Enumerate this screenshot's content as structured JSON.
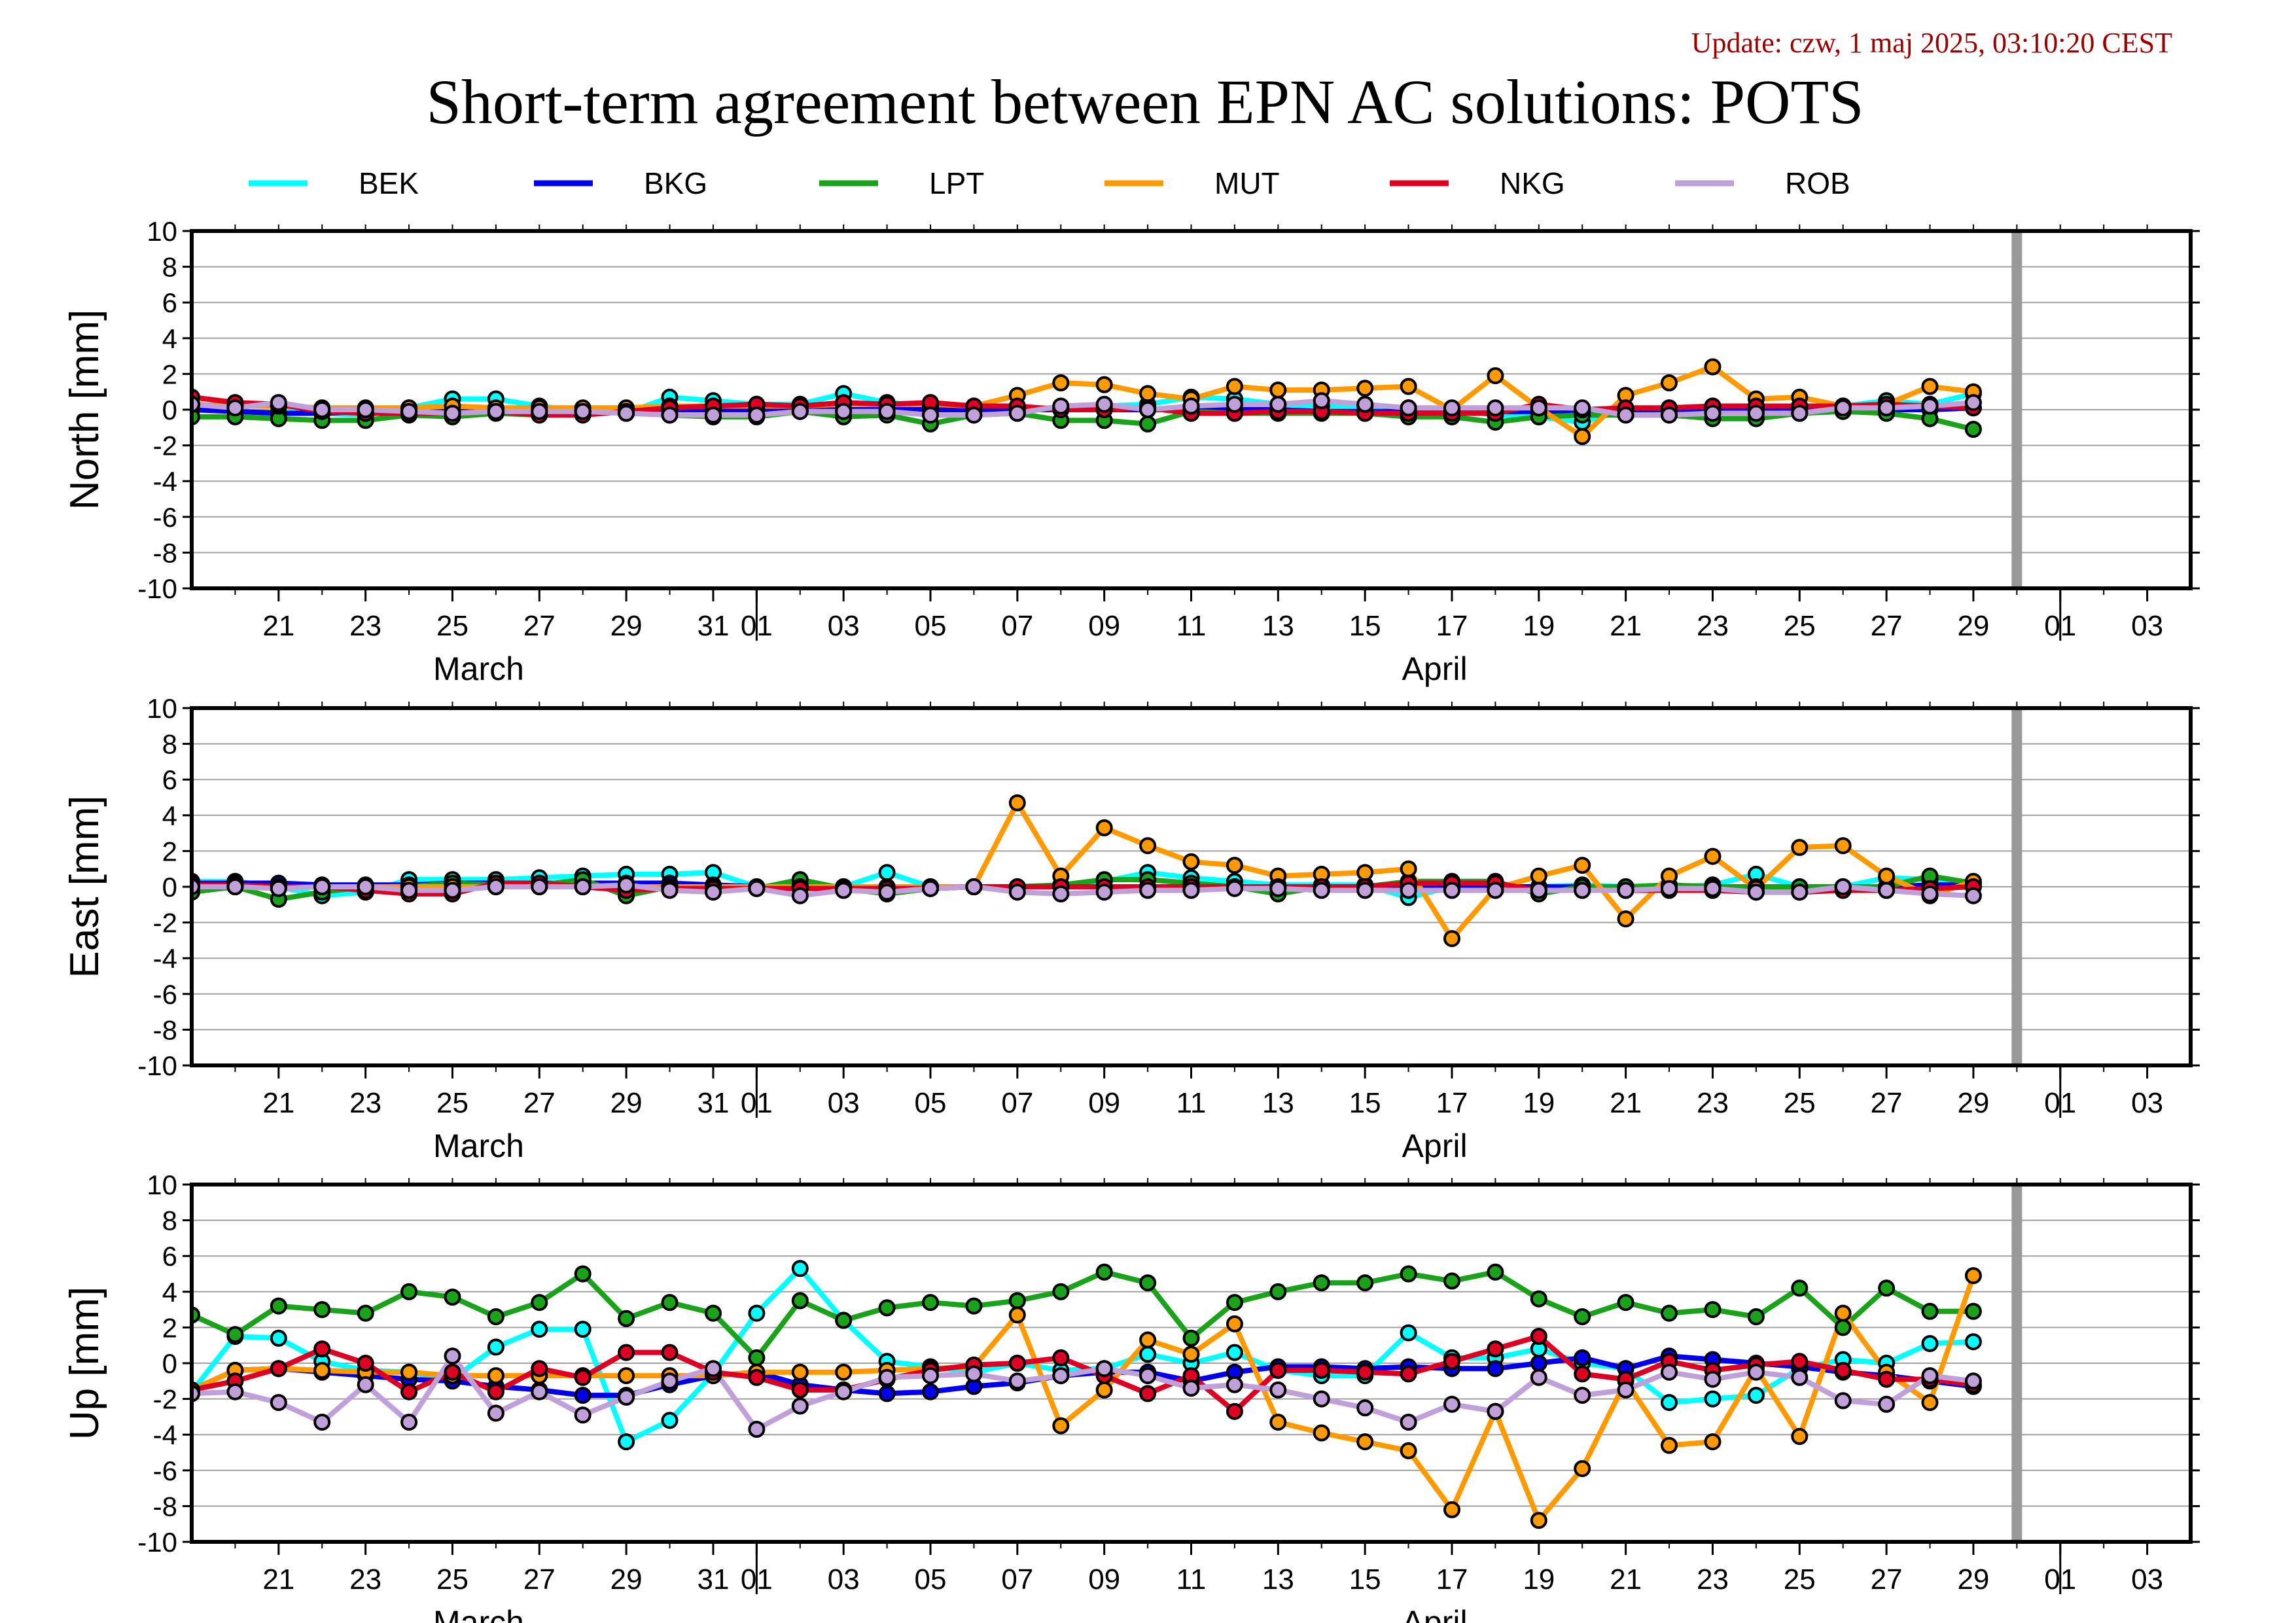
{
  "update_text": "Update: czw, 1 maj 2025, 03:10:20 CEST",
  "title": "Short-term agreement between EPN AC solutions: POTS",
  "colors": {
    "BEK": "#00ffff",
    "BKG": "#0000ee",
    "LPT": "#1aa31a",
    "MUT": "#ff9900",
    "NKG": "#dd0022",
    "ROB": "#c0a0d8",
    "marker_edge": "#000000",
    "today_line": "#999999",
    "grid": "#a0a0a0",
    "update_text": "#990000"
  },
  "chart_data": {
    "type": "line",
    "x_unit": "day",
    "xlim": [
      "2025-03-19",
      "2025-05-04"
    ],
    "ylim": [
      -10,
      10
    ],
    "yticks": [
      -10,
      -8,
      -6,
      -4,
      -2,
      0,
      2,
      4,
      6,
      8,
      10
    ],
    "x_tick_labels": [
      "21",
      "23",
      "25",
      "27",
      "29",
      "31",
      "01",
      "03",
      "05",
      "07",
      "09",
      "11",
      "13",
      "15",
      "17",
      "19",
      "21",
      "23",
      "25",
      "27",
      "29",
      "01",
      "03"
    ],
    "x_tick_dates": [
      "2025-03-21",
      "2025-03-23",
      "2025-03-25",
      "2025-03-27",
      "2025-03-29",
      "2025-03-31",
      "2025-04-01",
      "2025-04-03",
      "2025-04-05",
      "2025-04-07",
      "2025-04-09",
      "2025-04-11",
      "2025-04-13",
      "2025-04-15",
      "2025-04-17",
      "2025-04-19",
      "2025-04-21",
      "2025-04-23",
      "2025-04-25",
      "2025-04-27",
      "2025-04-29",
      "2025-05-01",
      "2025-05-03"
    ],
    "month_labels": [
      {
        "text": "March",
        "date": "2025-03-25"
      },
      {
        "text": "April",
        "date": "2025-04-16"
      }
    ],
    "month_boundaries": [
      "2025-03-31",
      "2025-04-30"
    ],
    "today_marker": "2025-04-30",
    "legend": [
      "BEK",
      "BKG",
      "LPT",
      "MUT",
      "NKG",
      "ROB"
    ],
    "legend_position": "top",
    "grid": "horizontal",
    "dates": [
      "2025-03-19",
      "2025-03-20",
      "2025-03-21",
      "2025-03-22",
      "2025-03-23",
      "2025-03-24",
      "2025-03-25",
      "2025-03-26",
      "2025-03-27",
      "2025-03-28",
      "2025-03-29",
      "2025-03-30",
      "2025-03-31",
      "2025-04-01",
      "2025-04-02",
      "2025-04-03",
      "2025-04-04",
      "2025-04-05",
      "2025-04-06",
      "2025-04-07",
      "2025-04-08",
      "2025-04-09",
      "2025-04-10",
      "2025-04-11",
      "2025-04-12",
      "2025-04-13",
      "2025-04-14",
      "2025-04-15",
      "2025-04-16",
      "2025-04-17",
      "2025-04-18",
      "2025-04-19",
      "2025-04-20",
      "2025-04-21",
      "2025-04-22",
      "2025-04-23",
      "2025-04-24",
      "2025-04-25",
      "2025-04-26",
      "2025-04-27",
      "2025-04-28",
      "2025-04-29"
    ],
    "panels": [
      {
        "ylabel": "North [mm]",
        "series": [
          {
            "name": "BEK",
            "values": [
              0.3,
              0.2,
              0.2,
              -0.2,
              -0.3,
              0.1,
              0.6,
              0.6,
              0.2,
              -0.1,
              -0.2,
              0.7,
              0.5,
              0.3,
              0.3,
              0.9,
              0.4,
              0.2,
              0.1,
              0.1,
              0.1,
              0.2,
              0.3,
              0.7,
              0.6,
              0.3,
              0.2,
              0.2,
              0.1,
              0.0,
              -0.3,
              -0.4,
              -0.7,
              0.0,
              0.1,
              0.2,
              0.1,
              0.2,
              0.2,
              0.5,
              0.3,
              0.9
            ]
          },
          {
            "name": "BKG",
            "values": [
              0.0,
              -0.1,
              -0.2,
              -0.2,
              -0.1,
              -0.1,
              -0.1,
              0.0,
              -0.1,
              -0.1,
              -0.1,
              0.0,
              0.0,
              0.0,
              0.0,
              0.0,
              0.0,
              0.0,
              0.0,
              0.0,
              0.0,
              0.0,
              0.0,
              0.0,
              0.0,
              0.0,
              -0.1,
              -0.1,
              -0.1,
              -0.1,
              -0.1,
              -0.1,
              -0.1,
              0.0,
              0.0,
              0.0,
              0.0,
              0.0,
              0.0,
              0.0,
              0.0,
              0.1
            ]
          },
          {
            "name": "LPT",
            "values": [
              -0.4,
              -0.4,
              -0.5,
              -0.6,
              -0.6,
              -0.3,
              -0.4,
              -0.2,
              -0.3,
              -0.1,
              -0.1,
              -0.3,
              -0.4,
              -0.4,
              -0.1,
              -0.4,
              -0.3,
              -0.8,
              -0.3,
              -0.2,
              -0.6,
              -0.6,
              -0.8,
              -0.1,
              -0.2,
              -0.2,
              -0.2,
              -0.2,
              -0.4,
              -0.4,
              -0.7,
              -0.4,
              -0.3,
              -0.3,
              -0.3,
              -0.5,
              -0.5,
              -0.2,
              -0.1,
              -0.2,
              -0.5,
              -1.1
            ]
          },
          {
            "name": "MUT",
            "values": [
              0.3,
              0.2,
              0.2,
              0.1,
              0.1,
              0.1,
              0.2,
              0.1,
              0.1,
              0.1,
              0.1,
              0.2,
              0.2,
              0.2,
              0.2,
              0.3,
              0.3,
              0.3,
              0.2,
              0.8,
              1.5,
              1.4,
              0.9,
              0.6,
              1.3,
              1.1,
              1.1,
              1.2,
              1.3,
              0.0,
              1.9,
              0.1,
              -1.5,
              0.8,
              1.5,
              2.4,
              0.6,
              0.7,
              0.2,
              0.3,
              1.3,
              1.0
            ]
          },
          {
            "name": "NKG",
            "values": [
              0.7,
              0.4,
              0.3,
              -0.1,
              -0.2,
              -0.2,
              -0.2,
              -0.1,
              -0.3,
              -0.3,
              -0.1,
              0.1,
              0.2,
              0.3,
              0.2,
              0.4,
              0.3,
              0.4,
              0.2,
              0.2,
              0.0,
              0.0,
              0.1,
              -0.2,
              -0.2,
              -0.1,
              -0.1,
              -0.2,
              -0.2,
              -0.2,
              -0.2,
              0.3,
              0.0,
              0.1,
              0.1,
              0.2,
              0.2,
              0.2,
              0.2,
              0.3,
              0.2,
              0.1
            ]
          },
          {
            "name": "ROB",
            "values": [
              0.3,
              0.1,
              0.4,
              0.0,
              0.0,
              -0.1,
              -0.2,
              -0.1,
              -0.1,
              -0.1,
              -0.2,
              -0.3,
              -0.3,
              -0.3,
              -0.1,
              -0.1,
              -0.1,
              -0.3,
              -0.3,
              -0.2,
              0.2,
              0.3,
              0.0,
              0.2,
              0.3,
              0.3,
              0.5,
              0.3,
              0.1,
              0.1,
              0.1,
              0.1,
              0.1,
              -0.3,
              -0.3,
              -0.2,
              -0.2,
              -0.2,
              0.1,
              0.1,
              0.2,
              0.4
            ]
          }
        ]
      },
      {
        "ylabel": "East [mm]",
        "series": [
          {
            "name": "BEK",
            "values": [
              0.3,
              0.3,
              0.0,
              -0.5,
              -0.3,
              0.4,
              0.4,
              0.4,
              0.5,
              0.6,
              0.7,
              0.7,
              0.8,
              0.0,
              0.1,
              0.0,
              0.8,
              0.0,
              0.0,
              0.0,
              0.1,
              0.3,
              0.8,
              0.5,
              0.3,
              0.1,
              0.1,
              0.1,
              -0.6,
              0.0,
              0.0,
              0.0,
              0.1,
              0.0,
              0.0,
              0.1,
              0.7,
              0.0,
              0.0,
              0.5,
              0.4,
              0.0
            ]
          },
          {
            "name": "BKG",
            "values": [
              0.2,
              0.2,
              0.2,
              0.1,
              0.1,
              0.1,
              0.2,
              0.2,
              0.2,
              0.2,
              0.2,
              0.2,
              0.1,
              0.0,
              0.0,
              0.0,
              0.0,
              0.0,
              0.0,
              0.0,
              0.0,
              0.0,
              0.0,
              0.0,
              0.0,
              0.0,
              0.0,
              0.0,
              0.0,
              0.0,
              0.0,
              0.0,
              0.0,
              0.0,
              0.0,
              0.0,
              0.0,
              0.0,
              0.0,
              0.0,
              0.1,
              0.1
            ]
          },
          {
            "name": "LPT",
            "values": [
              -0.3,
              0.0,
              -0.7,
              -0.3,
              0.0,
              0.0,
              0.2,
              0.1,
              0.1,
              0.4,
              -0.5,
              0.0,
              0.0,
              -0.1,
              0.4,
              -0.1,
              -0.4,
              -0.1,
              0.0,
              0.0,
              0.1,
              0.4,
              0.4,
              0.2,
              0.0,
              -0.4,
              0.0,
              0.0,
              0.3,
              0.3,
              0.3,
              -0.4,
              0.0,
              0.0,
              0.1,
              0.0,
              0.0,
              0.0,
              0.0,
              0.0,
              0.6,
              0.2
            ]
          },
          {
            "name": "MUT",
            "values": [
              0.0,
              0.0,
              0.0,
              0.0,
              0.0,
              0.0,
              0.0,
              0.0,
              0.0,
              0.0,
              0.0,
              0.0,
              0.0,
              0.0,
              0.0,
              0.0,
              0.0,
              0.0,
              0.0,
              4.7,
              0.6,
              3.3,
              2.3,
              1.4,
              1.2,
              0.6,
              0.7,
              0.8,
              1.0,
              -2.9,
              -0.1,
              0.6,
              1.2,
              -1.8,
              0.6,
              1.7,
              -0.1,
              2.2,
              2.3,
              0.6,
              -0.5,
              0.3
            ]
          },
          {
            "name": "NKG",
            "values": [
              0.1,
              0.1,
              0.0,
              0.0,
              -0.2,
              -0.4,
              -0.4,
              0.2,
              0.2,
              0.0,
              -0.2,
              -0.1,
              -0.1,
              -0.1,
              -0.1,
              -0.1,
              -0.1,
              -0.1,
              0.0,
              0.0,
              0.0,
              0.0,
              0.0,
              0.0,
              0.0,
              0.0,
              0.0,
              0.0,
              0.2,
              0.2,
              0.2,
              -0.2,
              -0.2,
              -0.2,
              -0.2,
              -0.2,
              -0.3,
              -0.3,
              -0.2,
              -0.2,
              -0.1,
              0.0
            ]
          },
          {
            "name": "ROB",
            "values": [
              0.0,
              0.0,
              -0.1,
              0.0,
              0.0,
              -0.2,
              -0.2,
              0.0,
              0.0,
              0.0,
              0.1,
              -0.2,
              -0.3,
              -0.1,
              -0.5,
              -0.2,
              -0.3,
              -0.1,
              0.0,
              -0.3,
              -0.4,
              -0.3,
              -0.2,
              -0.2,
              -0.1,
              -0.1,
              -0.2,
              -0.2,
              -0.2,
              -0.2,
              -0.2,
              -0.2,
              -0.2,
              -0.2,
              -0.1,
              -0.1,
              -0.3,
              -0.3,
              0.0,
              -0.2,
              -0.4,
              -0.5
            ]
          }
        ]
      },
      {
        "ylabel": "Up [mm]",
        "series": [
          {
            "name": "BEK",
            "values": [
              -1.6,
              1.5,
              1.4,
              0.1,
              -0.4,
              -0.5,
              -0.9,
              0.9,
              1.9,
              1.9,
              -4.4,
              -3.2,
              -0.6,
              2.8,
              5.3,
              2.4,
              0.1,
              -0.2,
              -0.5,
              0.0,
              -0.4,
              -0.3,
              0.5,
              0.0,
              0.6,
              -0.4,
              -0.7,
              -0.7,
              1.7,
              0.3,
              0.3,
              0.8,
              0.0,
              -0.3,
              -2.2,
              -2.0,
              -1.8,
              -0.3,
              0.2,
              0.0,
              1.1,
              1.2
            ]
          },
          {
            "name": "BKG",
            "values": [
              -1.5,
              -0.4,
              -0.3,
              -0.5,
              -0.7,
              -0.9,
              -1.0,
              -1.3,
              -1.5,
              -1.8,
              -1.8,
              -1.2,
              -0.7,
              -0.5,
              -1.2,
              -1.5,
              -1.7,
              -1.6,
              -1.3,
              -1.1,
              -0.7,
              -0.5,
              -0.5,
              -1.0,
              -0.5,
              -0.2,
              -0.2,
              -0.3,
              -0.2,
              -0.3,
              -0.3,
              0.0,
              0.3,
              -0.3,
              0.4,
              0.2,
              0.0,
              -0.2,
              -0.5,
              -0.7,
              -1.0,
              -1.3
            ]
          },
          {
            "name": "LPT",
            "values": [
              2.7,
              1.6,
              3.2,
              3.0,
              2.8,
              4.0,
              3.7,
              2.6,
              3.4,
              5.0,
              2.5,
              3.4,
              2.8,
              0.3,
              3.5,
              2.4,
              3.1,
              3.4,
              3.2,
              3.5,
              4.0,
              5.1,
              4.5,
              1.4,
              3.4,
              4.0,
              4.5,
              4.5,
              5.0,
              4.6,
              5.1,
              3.6,
              2.6,
              3.4,
              2.8,
              3.0,
              2.6,
              4.2,
              2.0,
              4.2,
              2.9,
              2.9
            ]
          },
          {
            "name": "MUT",
            "values": [
              -1.5,
              -0.4,
              -0.3,
              -0.4,
              -0.5,
              -0.5,
              -0.7,
              -0.7,
              -0.7,
              -0.7,
              -0.7,
              -0.7,
              -0.7,
              -0.5,
              -0.5,
              -0.5,
              -0.4,
              -0.3,
              -0.2,
              2.7,
              -3.5,
              -1.5,
              1.3,
              0.5,
              2.2,
              -3.3,
              -3.9,
              -4.4,
              -4.9,
              -8.2,
              -2.7,
              -8.8,
              -5.9,
              -1.0,
              -4.6,
              -4.4,
              -0.3,
              -4.1,
              2.8,
              -0.5,
              -2.2,
              4.9
            ]
          },
          {
            "name": "NKG",
            "values": [
              -1.5,
              -1.0,
              -0.3,
              0.8,
              0.0,
              -1.6,
              -0.5,
              -1.6,
              -0.3,
              -0.8,
              0.6,
              0.6,
              -0.5,
              -0.8,
              -1.5,
              -1.5,
              -0.9,
              -0.4,
              -0.1,
              0.0,
              0.3,
              -0.7,
              -1.7,
              -0.7,
              -2.7,
              -0.4,
              -0.4,
              -0.5,
              -0.6,
              0.1,
              0.8,
              1.5,
              -0.6,
              -0.9,
              0.1,
              -0.4,
              -0.1,
              0.1,
              -0.4,
              -0.9,
              -0.9,
              -1.2
            ]
          },
          {
            "name": "ROB",
            "values": [
              -1.7,
              -1.6,
              -2.2,
              -3.3,
              -1.2,
              -3.3,
              0.4,
              -2.8,
              -1.6,
              -2.9,
              -1.9,
              -1.0,
              -0.3,
              -3.7,
              -2.4,
              -1.6,
              -0.8,
              -0.7,
              -0.6,
              -1.0,
              -0.7,
              -0.3,
              -0.7,
              -1.4,
              -1.2,
              -1.5,
              -2.0,
              -2.5,
              -3.3,
              -2.3,
              -2.7,
              -0.8,
              -1.8,
              -1.5,
              -0.5,
              -0.9,
              -0.5,
              -0.8,
              -2.1,
              -2.3,
              -0.7,
              -1.0
            ]
          }
        ]
      }
    ]
  }
}
